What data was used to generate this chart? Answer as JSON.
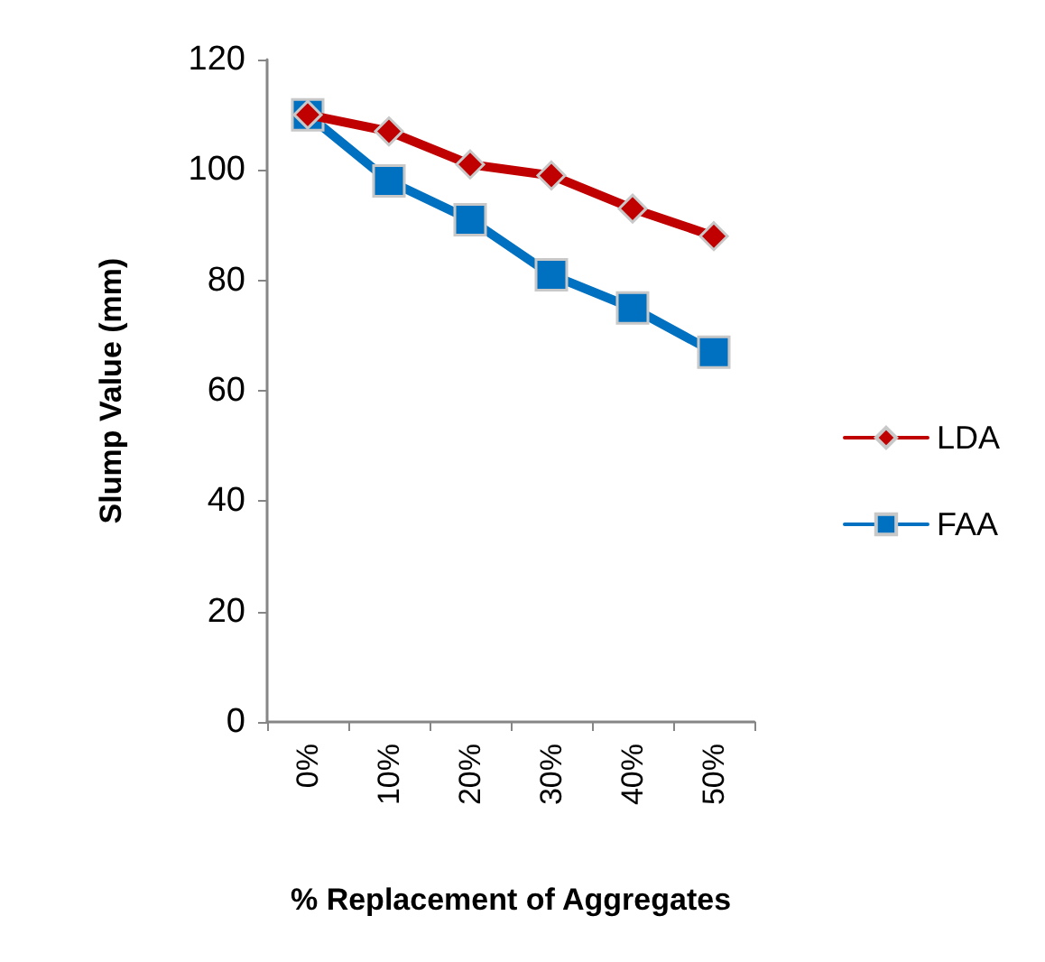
{
  "chart_data": {
    "type": "line",
    "xlabel": "% Replacement of Aggregates",
    "ylabel": "Slump Value (mm)",
    "categories": [
      "0%",
      "10%",
      "20%",
      "30%",
      "40%",
      "50%"
    ],
    "ylim": [
      0,
      120
    ],
    "yticks": [
      0,
      20,
      40,
      60,
      80,
      100,
      120
    ],
    "grid": false,
    "legend": "right",
    "line_style": "solid",
    "series": [
      {
        "name": "LDA",
        "color": "#c00000",
        "marker": "diamond",
        "values": [
          110,
          107,
          101,
          99,
          93,
          88
        ]
      },
      {
        "name": "FAA",
        "color": "#0070c0",
        "marker": "square",
        "values": [
          110,
          98,
          91,
          81,
          75,
          67
        ]
      }
    ]
  }
}
